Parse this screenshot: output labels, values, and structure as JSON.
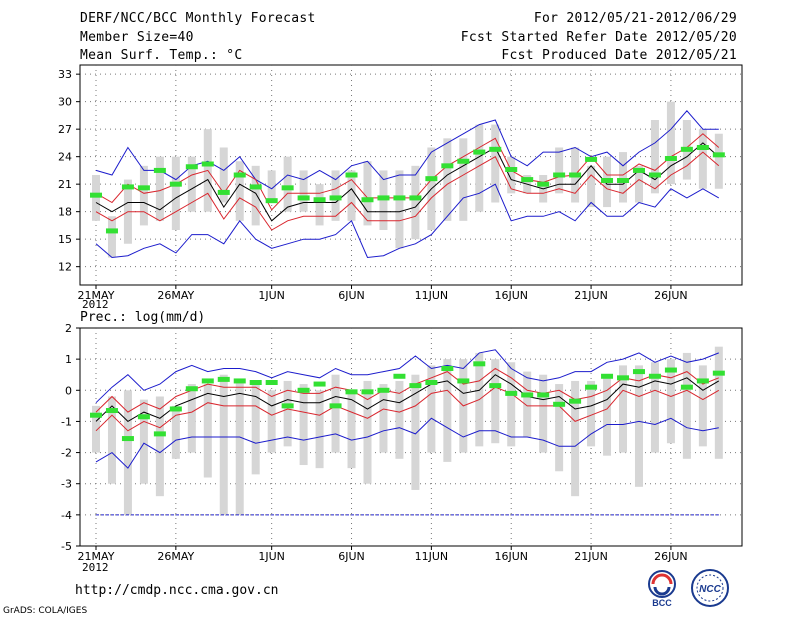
{
  "header": {
    "title": "DERF/NCC/BCC Monthly Forecast",
    "member_size": "Member Size=40",
    "variable": "Mean Surf. Temp.: °C",
    "period": "For 2012/05/21-2012/06/29",
    "start_date": "Fcst Started Refer Date 2012/05/20",
    "produced_date": "Fcst Produced Date 2012/05/21"
  },
  "footer": {
    "url": "http://cmdp.ncc.cma.gov.cn",
    "credit": "GrADS: COLA/IGES",
    "logo_left": "BCC",
    "logo_right": "NCC"
  },
  "colors": {
    "box": "#d6d6d6",
    "median": "#000000",
    "quartile": "#d9262e",
    "extreme": "#1c1ccc",
    "mean_marker": "#33e033",
    "grid": "#777777"
  },
  "chart_data": [
    {
      "type": "box",
      "title": "Mean Surf. Temp.: °C",
      "ylim": [
        10,
        34
      ],
      "yticks": [
        12,
        15,
        18,
        21,
        24,
        27,
        30,
        33
      ],
      "ytick_labels": [
        "12",
        "15",
        "18",
        "21",
        "24",
        "27",
        "30",
        "33"
      ],
      "xtick_labels": [
        "21MAY",
        "26MAY",
        "1JUN",
        "6JUN",
        "11JUN",
        "16JUN",
        "21JUN",
        "26JUN"
      ],
      "xtick_days": [
        0,
        5,
        11,
        16,
        21,
        26,
        31,
        36
      ],
      "year_label": "2012",
      "days": 40,
      "box_low": [
        17,
        13,
        14.5,
        16.5,
        17,
        16,
        18,
        18,
        19,
        17,
        16.5,
        19,
        18,
        18,
        16.5,
        17,
        17,
        16.5,
        16,
        14,
        15,
        16,
        17,
        17,
        18,
        19,
        20,
        20,
        19,
        20,
        19,
        18.5,
        18.5,
        19,
        19,
        20,
        21,
        21.5,
        20.5,
        20.5
      ],
      "box_high": [
        22,
        17.5,
        21.5,
        23,
        24,
        24,
        24,
        27,
        25,
        23.5,
        23,
        22.5,
        24,
        22.5,
        21,
        22.5,
        22.5,
        23.5,
        22.5,
        22.5,
        23,
        25,
        26,
        26,
        27.5,
        27.5,
        24,
        22,
        22,
        25,
        25,
        23,
        24,
        24.5,
        23,
        28,
        30,
        28,
        27,
        26.5
      ],
      "median": [
        19,
        18,
        19,
        19,
        18.2,
        19.5,
        20.5,
        21.5,
        18.5,
        21,
        20,
        17,
        18.5,
        19,
        19,
        19,
        20.5,
        18,
        18,
        18,
        18.5,
        20.5,
        22,
        23,
        24,
        25,
        21.5,
        21,
        20.5,
        21,
        21,
        23,
        21,
        21,
        22.5,
        21.5,
        23,
        24,
        25.5,
        24
      ],
      "q_upper": [
        20,
        19,
        21,
        20,
        20.3,
        21,
        22,
        22.5,
        20,
        22.5,
        21.5,
        18.2,
        20,
        20,
        20,
        20.5,
        21.5,
        19.5,
        19.5,
        19.5,
        19.5,
        21.5,
        23,
        24,
        25,
        26,
        22.5,
        21.5,
        21.2,
        21.8,
        22,
        24,
        22,
        22,
        23.2,
        22.5,
        24,
        25,
        26.5,
        25
      ],
      "q_lower": [
        18,
        17,
        18,
        18,
        17,
        18,
        19,
        20,
        17.2,
        19.5,
        18.5,
        16,
        17,
        17.5,
        17.5,
        17.5,
        19,
        17,
        17,
        17,
        17.5,
        19.5,
        21,
        22,
        23,
        24,
        20.5,
        20,
        20,
        20.5,
        20,
        22,
        20.5,
        20,
        21.5,
        20.5,
        22,
        23,
        24.5,
        23
      ],
      "ens_max": [
        22.5,
        22,
        25,
        22.5,
        22.5,
        21.5,
        23,
        23.5,
        22.5,
        24,
        21.5,
        20.5,
        22,
        21.5,
        22.5,
        21.5,
        23,
        23.5,
        21.5,
        22,
        22,
        24.5,
        25.5,
        26.5,
        27.5,
        28,
        24,
        23,
        24.5,
        24.5,
        25,
        24,
        24.5,
        23,
        24.5,
        25.5,
        27,
        29,
        27,
        27
      ],
      "ens_min": [
        14.5,
        13,
        13.2,
        14,
        14.5,
        13.5,
        15.5,
        15.5,
        14.5,
        17,
        15,
        14,
        14.5,
        15,
        15,
        15.5,
        17,
        13,
        13.2,
        14,
        14.5,
        15.5,
        17.5,
        19.5,
        20,
        21,
        17,
        17.5,
        17.5,
        18,
        17,
        19,
        17.5,
        17.5,
        19,
        18.5,
        20.5,
        19.5,
        20.5,
        19.5
      ],
      "ens_mean": [
        19.8,
        15.9,
        20.7,
        20.6,
        22.5,
        21,
        22.9,
        23.2,
        20.1,
        22,
        20.7,
        19.2,
        20.6,
        19.5,
        19.3,
        19.5,
        22,
        19.3,
        19.5,
        19.5,
        19.5,
        21.6,
        23,
        23.5,
        24.5,
        24.8,
        22.6,
        21.5,
        21,
        22,
        22,
        23.7,
        21.4,
        21.4,
        22.5,
        22,
        23.8,
        24.8,
        25,
        24.2
      ]
    },
    {
      "type": "box",
      "title": "Prec.: log(mm/d)",
      "ylim": [
        -5,
        2
      ],
      "yticks": [
        -5,
        -4,
        -3,
        -2,
        -1,
        0,
        1,
        2
      ],
      "ytick_labels": [
        "-5",
        "-4",
        "-3",
        "-2",
        "-1",
        "0",
        "1",
        "2"
      ],
      "xtick_labels": [
        "21MAY",
        "26MAY",
        "1JUN",
        "6JUN",
        "11JUN",
        "16JUN",
        "21JUN",
        "26JUN"
      ],
      "xtick_days": [
        0,
        5,
        11,
        16,
        21,
        26,
        31,
        36
      ],
      "year_label": "2012",
      "days": 40,
      "floor_value": -4,
      "box_low": [
        -2,
        -3,
        -4,
        -3,
        -3.4,
        -2.2,
        -2,
        -2.8,
        -4,
        -4,
        -2.7,
        -2,
        -1.8,
        -2.4,
        -2.5,
        -2,
        -2.5,
        -3,
        -2,
        -2.2,
        -3.2,
        -2,
        -2.3,
        -2,
        -1.8,
        -1.7,
        -1.8,
        -1.5,
        -2,
        -2.6,
        -3.4,
        -1.8,
        -2.1,
        -2,
        -3.1,
        -2,
        -1.7,
        -2.2,
        -1.8,
        -2.2
      ],
      "box_high": [
        -0.5,
        -0.2,
        0,
        -0.3,
        -0.2,
        -0.5,
        0.2,
        0.2,
        0.5,
        0.3,
        0.3,
        0,
        0.3,
        0.2,
        0,
        0.5,
        0,
        0.3,
        0.2,
        0.3,
        0.5,
        0.8,
        1,
        1,
        1.2,
        1,
        0.9,
        0.6,
        0.5,
        0.2,
        0.3,
        0.3,
        0.5,
        0.8,
        0.8,
        0.9,
        1,
        1.2,
        0.8,
        1.4
      ],
      "median": [
        -1,
        -0.5,
        -1,
        -0.7,
        -0.9,
        -0.5,
        -0.3,
        -0.1,
        -0.2,
        -0.1,
        -0.2,
        -0.5,
        -0.3,
        -0.4,
        -0.4,
        -0.2,
        -0.3,
        -0.6,
        -0.3,
        -0.4,
        -0.1,
        0.2,
        0.3,
        -0.1,
        0,
        0.5,
        0.2,
        -0.2,
        -0.3,
        -0.2,
        -0.6,
        -0.5,
        -0.3,
        0.2,
        0.1,
        0.3,
        0.2,
        0.4,
        0,
        0.3
      ],
      "q_upper": [
        -0.7,
        -0.2,
        -0.7,
        -0.4,
        -0.6,
        -0.2,
        0,
        0.2,
        0.1,
        0.1,
        0.1,
        -0.2,
        0,
        -0.1,
        -0.1,
        0.1,
        0,
        -0.3,
        0,
        -0.1,
        0.2,
        0.4,
        0.6,
        0.2,
        0.3,
        0.7,
        0.4,
        0,
        -0.1,
        0,
        -0.3,
        -0.2,
        0,
        0.4,
        0.3,
        0.5,
        0.4,
        0.6,
        0.2,
        0.4
      ],
      "q_lower": [
        -1.3,
        -0.8,
        -1.3,
        -1,
        -1.2,
        -0.8,
        -0.7,
        -0.4,
        -0.5,
        -0.5,
        -0.5,
        -0.8,
        -0.6,
        -0.7,
        -0.8,
        -0.5,
        -0.7,
        -0.9,
        -0.6,
        -0.7,
        -0.5,
        -0.1,
        0,
        -0.5,
        -0.3,
        0.1,
        -0.1,
        -0.5,
        -0.5,
        -0.5,
        -1,
        -0.8,
        -0.6,
        0,
        -0.2,
        0,
        -0.2,
        0,
        -0.3,
        0
      ],
      "ens_max": [
        -0.4,
        0.1,
        0.5,
        0,
        0.2,
        0.6,
        0.8,
        0.6,
        0.7,
        0.7,
        0.6,
        0.4,
        0.6,
        0.5,
        0.4,
        0.7,
        0.5,
        0.5,
        0.6,
        0.7,
        1.1,
        0.7,
        0.8,
        0.7,
        1.2,
        1.3,
        0.7,
        0.4,
        0.3,
        0.4,
        0.6,
        0.6,
        0.9,
        1,
        1.2,
        0.9,
        1.1,
        0.9,
        1,
        1.2
      ],
      "ens_min": [
        -2.3,
        -2,
        -2.5,
        -1.7,
        -2,
        -1.6,
        -1.5,
        -1.5,
        -1.5,
        -1.5,
        -1.7,
        -1.6,
        -1.5,
        -1.6,
        -1.5,
        -1.4,
        -1.6,
        -1.5,
        -1.3,
        -1.2,
        -1.4,
        -0.9,
        -1.2,
        -1.5,
        -1.3,
        -1.3,
        -1.5,
        -1.5,
        -1.6,
        -1.8,
        -1.8,
        -1.4,
        -1.1,
        -1.1,
        -1,
        -1.1,
        -0.9,
        -1.2,
        -1.3,
        -1.2
      ],
      "ens_mean": [
        -0.8,
        -0.65,
        -1.55,
        -0.85,
        -1.4,
        -0.6,
        0.05,
        0.3,
        0.35,
        0.3,
        0.25,
        0.25,
        -0.5,
        0,
        0.2,
        -0.5,
        -0.05,
        -0.05,
        0,
        0.45,
        0.15,
        0.25,
        0.7,
        0.3,
        0.85,
        0.15,
        -0.1,
        -0.15,
        -0.15,
        -0.45,
        -0.35,
        0.1,
        0.45,
        0.4,
        0.6,
        0.45,
        0.65,
        0.1,
        0.3,
        0.55
      ]
    }
  ]
}
